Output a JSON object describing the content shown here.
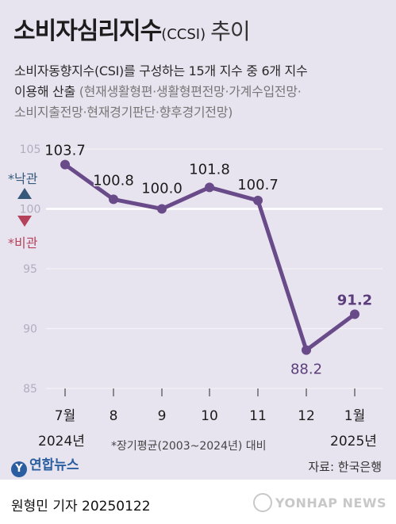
{
  "header": {
    "title": "소비자심리지수",
    "title_sub": "(CCSI)",
    "title_tail": "추이",
    "desc_line1": "소비자동향지수(CSI)를 구성하는 15개 지수 중 6개 지수",
    "desc_line2": "이용해 산출",
    "desc_line2_muted": "(현재생활형편·생활형편전망·가계수입전망·",
    "desc_line3": "소비지출전망·현재경기판단·향후경기전망)"
  },
  "legend": {
    "optimism": "*낙관",
    "pessimism": "*비관",
    "up_color": "#36587a",
    "down_color": "#b6415b"
  },
  "chart_data": {
    "type": "line",
    "categories": [
      "7월",
      "8",
      "9",
      "10",
      "11",
      "12",
      "1월"
    ],
    "values": [
      103.7,
      100.8,
      100.0,
      101.8,
      100.7,
      88.2,
      91.2
    ],
    "value_labels": [
      "103.7",
      "100.8",
      "100.0",
      "101.8",
      "100.7",
      "88.2",
      "91.2"
    ],
    "yticks": [
      "105",
      "100",
      "95",
      "90",
      "85"
    ],
    "ylim": [
      85,
      105
    ],
    "reference_line": 100,
    "year_labels": {
      "start": "2024년",
      "end": "2025년"
    },
    "line_color": "#6a4b8a",
    "accent_label_color": "#5b3d7b",
    "grid": true
  },
  "footer": {
    "note": "*장기평균(2003~2024년) 대비",
    "logo": "연합뉴스",
    "source": "자료: 한국은행",
    "credit": "원형민 기자  20250122",
    "watermark": "YONHAP NEWS"
  }
}
